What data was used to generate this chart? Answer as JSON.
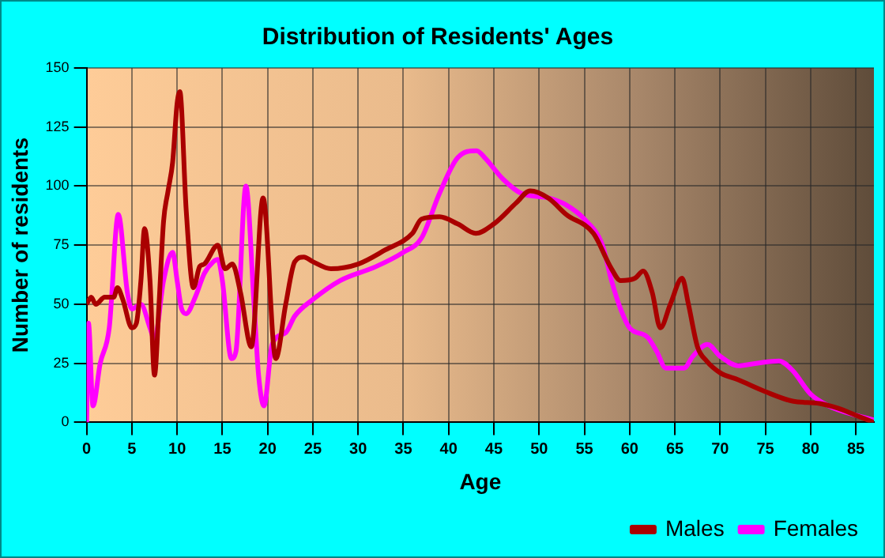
{
  "chart_data": {
    "type": "line",
    "title": "Distribution of Residents' Ages",
    "xlabel": "Age",
    "ylabel": "Number of residents",
    "xlim": [
      0,
      87
    ],
    "xticks": [
      0,
      5,
      10,
      15,
      20,
      25,
      30,
      35,
      40,
      45,
      50,
      55,
      60,
      65,
      70,
      75,
      80,
      85
    ],
    "ylim": [
      0,
      150
    ],
    "yticks": [
      0,
      25,
      50,
      75,
      100,
      125,
      150
    ],
    "grid": true,
    "legend": "bottom right",
    "marker": "none",
    "line_style": "solid",
    "series": [
      {
        "name": "Males",
        "color": "#aa0000",
        "x": [
          0,
          0.5,
          1,
          2,
          3,
          3.4,
          4,
          5,
          5.5,
          6,
          6.4,
          7,
          7.5,
          8,
          8.5,
          9,
          9.5,
          10,
          10.3,
          11,
          11.8,
          12.5,
          13,
          14.5,
          15.3,
          16.1,
          17,
          18.2,
          19.5,
          20.9,
          22,
          23,
          24,
          25,
          27,
          30,
          33,
          36,
          37,
          39,
          41,
          43,
          45,
          47.5,
          49,
          51,
          53,
          56,
          58,
          59,
          60.6,
          61.5,
          62.5,
          63.4,
          64.5,
          65.8,
          66.5,
          67.5,
          68.5,
          70,
          72,
          75,
          78,
          81,
          83,
          85,
          87
        ],
        "values": [
          50,
          53,
          50,
          53,
          53,
          57,
          52,
          40,
          42,
          60,
          82,
          60,
          20,
          50,
          85,
          98,
          110,
          135,
          140,
          90,
          57,
          66,
          67,
          75,
          65,
          67,
          55,
          32,
          95,
          27,
          50,
          68,
          70,
          68,
          65,
          67,
          73,
          80,
          86,
          87,
          84,
          80,
          84,
          93,
          98,
          95,
          88,
          80,
          65,
          60,
          61,
          64,
          55,
          40,
          50,
          61,
          50,
          32,
          26,
          21,
          18,
          13,
          9,
          8,
          6,
          3,
          0
        ]
      },
      {
        "name": "Females",
        "color": "#ff00ff",
        "x": [
          0,
          0.2,
          0.7,
          1.5,
          2.5,
          3.5,
          4.5,
          5,
          6,
          7,
          7.5,
          8.5,
          9.5,
          10,
          10.5,
          11,
          12,
          13,
          14,
          14.5,
          15,
          16,
          16.5,
          17.6,
          18.5,
          19,
          19.6,
          20.5,
          22,
          23,
          25,
          28,
          32,
          35,
          37,
          39,
          41,
          43.1,
          44,
          46,
          48,
          51,
          53,
          55,
          57,
          58,
          59,
          60,
          62,
          63,
          64,
          66,
          67,
          68.6,
          70,
          72,
          74,
          76.5,
          78,
          80,
          82,
          85,
          87
        ],
        "values": [
          0,
          42,
          7,
          25,
          40,
          88,
          55,
          48,
          50,
          40,
          35,
          60,
          72,
          60,
          48,
          46,
          53,
          63,
          68,
          69,
          60,
          27,
          30,
          100,
          50,
          20,
          7,
          33,
          38,
          45,
          52,
          60,
          66,
          72,
          78,
          97,
          112,
          115,
          112,
          103,
          97,
          95,
          92,
          86,
          75,
          60,
          48,
          40,
          36,
          30,
          23,
          23,
          28,
          33,
          28,
          24,
          25,
          26,
          22,
          12,
          7,
          3,
          1
        ]
      }
    ]
  }
}
